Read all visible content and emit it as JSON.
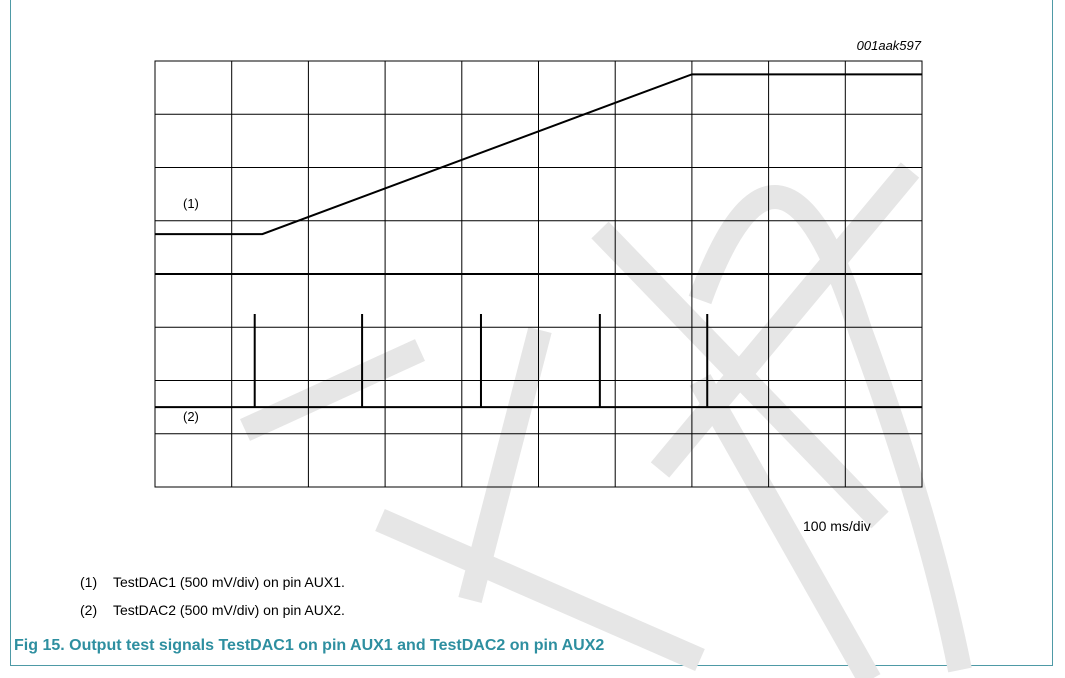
{
  "figure_id": "001aak597",
  "axis_unit": "100 ms/div",
  "trace_labels": [
    "(1)",
    "(2)"
  ],
  "notes": [
    {
      "num": "(1)",
      "text": "TestDAC1 (500 mV/div) on pin AUX1."
    },
    {
      "num": "(2)",
      "text": "TestDAC2 (500 mV/div) on pin AUX2."
    }
  ],
  "caption": "Fig 15.   Output test signals TestDAC1 on pin AUX1 and TestDAC2 on pin AUX2",
  "colors": {
    "accent": "#2e8fa0",
    "border": "#4e9aa6",
    "watermark": "#e6e6e6"
  },
  "chart_data": {
    "type": "line",
    "x_divisions": 10,
    "y_divisions": 8,
    "grid": true,
    "series": [
      {
        "name": "(1)",
        "x": [
          0,
          1.4,
          7.0,
          10.0
        ],
        "y": [
          4.75,
          4.75,
          7.75,
          7.75
        ]
      },
      {
        "name": "(2)",
        "pulse_edges": [
          1.3,
          2.7,
          4.25,
          5.8,
          7.2
        ],
        "low": 1.5,
        "high": 3.25
      }
    ]
  }
}
